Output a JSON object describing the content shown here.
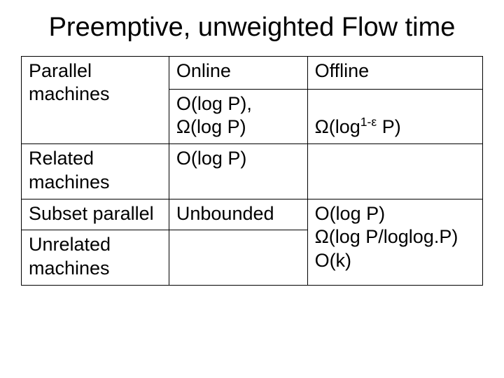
{
  "title": "Preemptive, unweighted Flow time",
  "table": {
    "header": {
      "col1": "",
      "col2": "Online",
      "col3": "Offline"
    },
    "rows": [
      {
        "label": "Parallel machines",
        "online": "O(log P), Ω(log P)",
        "offline": "Ω(log1-ε P)",
        "offline_html": "Ω(log<sup>1-ε</sup> P)"
      },
      {
        "label": "Related machines",
        "online": "O(log P)",
        "offline": ""
      },
      {
        "label": "Subset parallel",
        "online": "Unbounded",
        "offline": "O(log P) Ω(log P/loglog.P)"
      },
      {
        "label": "Unrelated machines",
        "online": "",
        "offline": "O(k)"
      }
    ],
    "colors": {
      "border": "#000000",
      "background": "#ffffff",
      "text": "#000000"
    },
    "font_size_title": 38,
    "font_size_body": 27
  }
}
